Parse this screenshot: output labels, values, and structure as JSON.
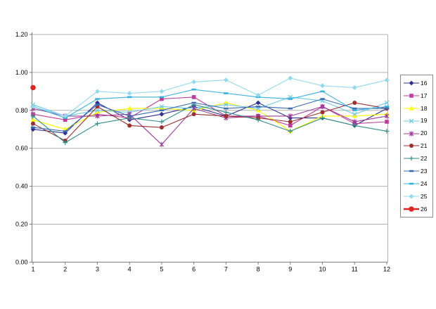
{
  "chart_data": {
    "type": "line",
    "title": "",
    "xlabel": "",
    "ylabel": "",
    "x_labels": [
      "1",
      "2",
      "3",
      "4",
      "5",
      "6",
      "7",
      "8",
      "9",
      "10",
      "11",
      "12"
    ],
    "y_ticks": [
      "0.00",
      "0.20",
      "0.40",
      "0.60",
      "0.80",
      "1.00",
      "1.20"
    ],
    "ylim": [
      0,
      1.2
    ],
    "y_step": 0.2,
    "grid": "horizontal",
    "legend_position": "right",
    "colors": {
      "gridline": "#b2b2b2",
      "axis": "#7a7a7a",
      "plot_border": "#b2b2b2",
      "background": "#ffffff"
    },
    "series": [
      {
        "name": "16",
        "color": "#2e3192",
        "marker": "diamond",
        "line_width": 1.1,
        "values": [
          0.7,
          0.68,
          0.84,
          0.75,
          0.78,
          0.82,
          0.77,
          0.84,
          0.76,
          0.76,
          0.72,
          0.81
        ]
      },
      {
        "name": "17",
        "color": "#c03c9c",
        "marker": "square",
        "line_width": 1.1,
        "values": [
          0.78,
          0.75,
          0.78,
          0.76,
          0.86,
          0.87,
          0.77,
          0.77,
          0.72,
          0.82,
          0.73,
          0.74
        ]
      },
      {
        "name": "18",
        "color": "#ffff00",
        "marker": "triangle",
        "line_width": 1.1,
        "values": [
          0.75,
          0.7,
          0.79,
          0.81,
          0.81,
          0.8,
          0.84,
          0.8,
          0.69,
          0.77,
          0.77,
          0.78
        ]
      },
      {
        "name": "19",
        "color": "#6ec9e6",
        "marker": "x",
        "line_width": 1.1,
        "values": [
          0.83,
          0.77,
          0.8,
          0.79,
          0.82,
          0.81,
          0.83,
          0.81,
          0.87,
          0.85,
          0.78,
          0.84
        ]
      },
      {
        "name": "20",
        "color": "#9b3d9b",
        "marker": "asterisk",
        "line_width": 1.1,
        "values": [
          0.81,
          0.77,
          0.77,
          0.78,
          0.62,
          0.81,
          0.76,
          0.77,
          0.77,
          0.82,
          0.74,
          0.77
        ]
      },
      {
        "name": "21",
        "color": "#9e2f2f",
        "marker": "circle",
        "line_width": 1.1,
        "values": [
          0.73,
          0.64,
          0.82,
          0.72,
          0.71,
          0.78,
          0.77,
          0.76,
          0.74,
          0.79,
          0.84,
          0.81
        ]
      },
      {
        "name": "22",
        "color": "#2f8e89",
        "marker": "plus",
        "line_width": 1.1,
        "values": [
          0.77,
          0.63,
          0.73,
          0.76,
          0.74,
          0.83,
          0.79,
          0.75,
          0.69,
          0.76,
          0.72,
          0.69
        ]
      },
      {
        "name": "23",
        "color": "#3a6bb3",
        "marker": "dash",
        "line_width": 1.1,
        "values": [
          0.71,
          0.69,
          0.83,
          0.77,
          0.8,
          0.84,
          0.81,
          0.82,
          0.81,
          0.86,
          0.81,
          0.81
        ]
      },
      {
        "name": "24",
        "color": "#35b1de",
        "marker": "dash",
        "line_width": 1.1,
        "values": [
          0.82,
          0.76,
          0.86,
          0.87,
          0.87,
          0.91,
          0.89,
          0.87,
          0.86,
          0.9,
          0.8,
          0.82
        ]
      },
      {
        "name": "25",
        "color": "#92d9ee",
        "marker": "diamond",
        "line_width": 1.1,
        "values": [
          0.82,
          0.77,
          0.9,
          0.89,
          0.9,
          0.95,
          0.96,
          0.88,
          0.97,
          0.93,
          0.92,
          0.96
        ]
      },
      {
        "name": "26",
        "color": "#dd2423",
        "marker": "circle",
        "line_width": 2.5,
        "values": [
          0.92,
          null,
          null,
          null,
          null,
          null,
          null,
          null,
          null,
          null,
          null,
          null
        ]
      }
    ]
  }
}
